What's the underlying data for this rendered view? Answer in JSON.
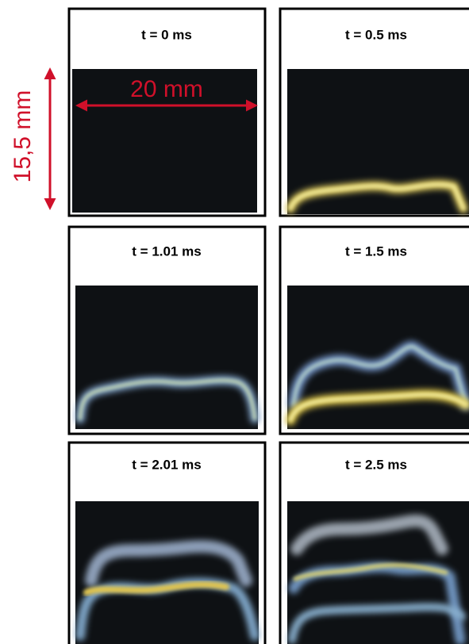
{
  "annotations": {
    "width": "20 mm",
    "height": "15,5 mm"
  },
  "panels": [
    {
      "label": "t = 0 ms"
    },
    {
      "label": "t = 0.5 ms"
    },
    {
      "label": "t = 1.01 ms"
    },
    {
      "label": "t = 1.5 ms"
    },
    {
      "label": "t = 2.01 ms"
    },
    {
      "label": "t = 2.5 ms"
    }
  ]
}
